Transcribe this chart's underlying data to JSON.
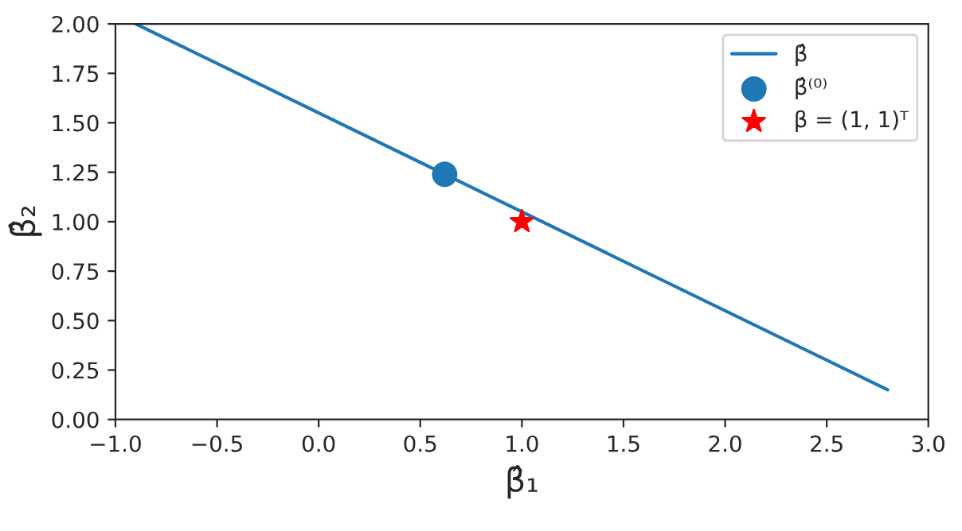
{
  "chart_data": {
    "type": "line",
    "xlabel": "β̂₁",
    "ylabel": "β̂₂",
    "series": [
      {
        "name": "β̂",
        "color": "#1f77b4",
        "x": [
          -0.9,
          2.8
        ],
        "values": [
          2.0,
          0.15
        ],
        "marker": "none"
      },
      {
        "name": "β̂⁽⁰⁾",
        "type": "scatter",
        "color": "#1f77b4",
        "x": [
          0.62
        ],
        "values": [
          1.24
        ],
        "marker": "circle"
      },
      {
        "name": "β = (1, 1)ᵀ",
        "type": "scatter",
        "color": "#ff0000",
        "x": [
          1.0
        ],
        "values": [
          1.0
        ],
        "marker": "star"
      }
    ],
    "xlim": [
      -1.0,
      3.0
    ],
    "xticks": [
      {
        "value": -1.0,
        "label": "−1.0"
      },
      {
        "value": -0.5,
        "label": "−0.5"
      },
      {
        "value": 0.0,
        "label": "0.0"
      },
      {
        "value": 0.5,
        "label": "0.5"
      },
      {
        "value": 1.0,
        "label": "1.0"
      },
      {
        "value": 1.5,
        "label": "1.5"
      },
      {
        "value": 2.0,
        "label": "2.0"
      },
      {
        "value": 2.5,
        "label": "2.5"
      },
      {
        "value": 3.0,
        "label": "3.0"
      }
    ],
    "ylim": [
      0.0,
      2.0
    ],
    "yticks": [
      {
        "value": 0.0,
        "label": "0.00"
      },
      {
        "value": 0.25,
        "label": "0.25"
      },
      {
        "value": 0.5,
        "label": "0.50"
      },
      {
        "value": 0.75,
        "label": "0.75"
      },
      {
        "value": 1.0,
        "label": "1.00"
      },
      {
        "value": 1.25,
        "label": "1.25"
      },
      {
        "value": 1.5,
        "label": "1.50"
      },
      {
        "value": 1.75,
        "label": "1.75"
      },
      {
        "value": 2.0,
        "label": "2.00"
      }
    ],
    "grid": false,
    "legend": "top right"
  }
}
